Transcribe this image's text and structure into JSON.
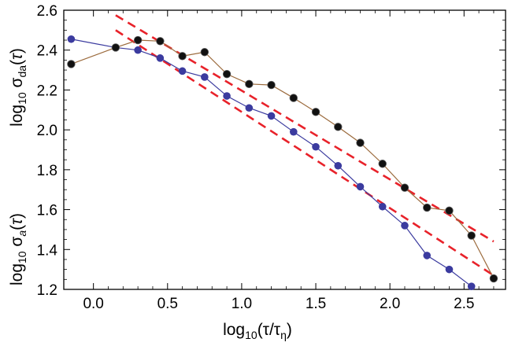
{
  "chart_data": {
    "type": "line",
    "xlim": [
      -0.2,
      2.78
    ],
    "ylim": [
      1.2,
      2.6
    ],
    "x_ticks": [
      "0.0",
      "0.5",
      "1.0",
      "1.5",
      "2.0",
      "2.5"
    ],
    "x_tick_values": [
      0.0,
      0.5,
      1.0,
      1.5,
      2.0,
      2.5
    ],
    "y_ticks": [
      "1.2",
      "1.4",
      "1.6",
      "1.8",
      "2.0",
      "2.2",
      "2.4",
      "2.6"
    ],
    "y_tick_values": [
      1.2,
      1.4,
      1.6,
      1.8,
      2.0,
      2.2,
      2.4,
      2.6
    ],
    "xlabel": "log10(τ/τη)",
    "ylabel_lower": "log10 σa(τ)",
    "ylabel_upper": "log10 σda(τ)",
    "grid": false,
    "series": [
      {
        "color": "#3b3b9f",
        "line_color": "#3b3b9f",
        "x": [
          -0.15,
          0.15,
          0.3,
          0.45,
          0.6,
          0.75,
          0.9,
          1.05,
          1.2,
          1.35,
          1.5,
          1.65,
          1.8,
          1.95,
          2.1,
          2.25,
          2.4,
          2.55
        ],
        "y": [
          2.455,
          2.413,
          2.4,
          2.36,
          2.295,
          2.265,
          2.17,
          2.11,
          2.07,
          1.99,
          1.915,
          1.82,
          1.715,
          1.615,
          1.52,
          1.37,
          1.3,
          1.215
        ]
      },
      {
        "color": "#111111",
        "line_color": "#9b6a3c",
        "x": [
          -0.15,
          0.15,
          0.3,
          0.45,
          0.6,
          0.75,
          0.9,
          1.05,
          1.2,
          1.35,
          1.5,
          1.65,
          1.8,
          1.95,
          2.1,
          2.25,
          2.4,
          2.55,
          2.7
        ],
        "y": [
          2.33,
          2.413,
          2.45,
          2.445,
          2.37,
          2.39,
          2.28,
          2.23,
          2.225,
          2.16,
          2.09,
          2.015,
          1.935,
          1.83,
          1.71,
          1.61,
          1.595,
          1.47,
          1.255
        ]
      }
    ],
    "fits": [
      {
        "color": "#e8222a",
        "x": [
          0.15,
          2.7
        ],
        "y": [
          2.575,
          1.44
        ]
      },
      {
        "color": "#e8222a",
        "x": [
          0.15,
          2.7
        ],
        "y": [
          2.5,
          1.27
        ]
      }
    ]
  }
}
